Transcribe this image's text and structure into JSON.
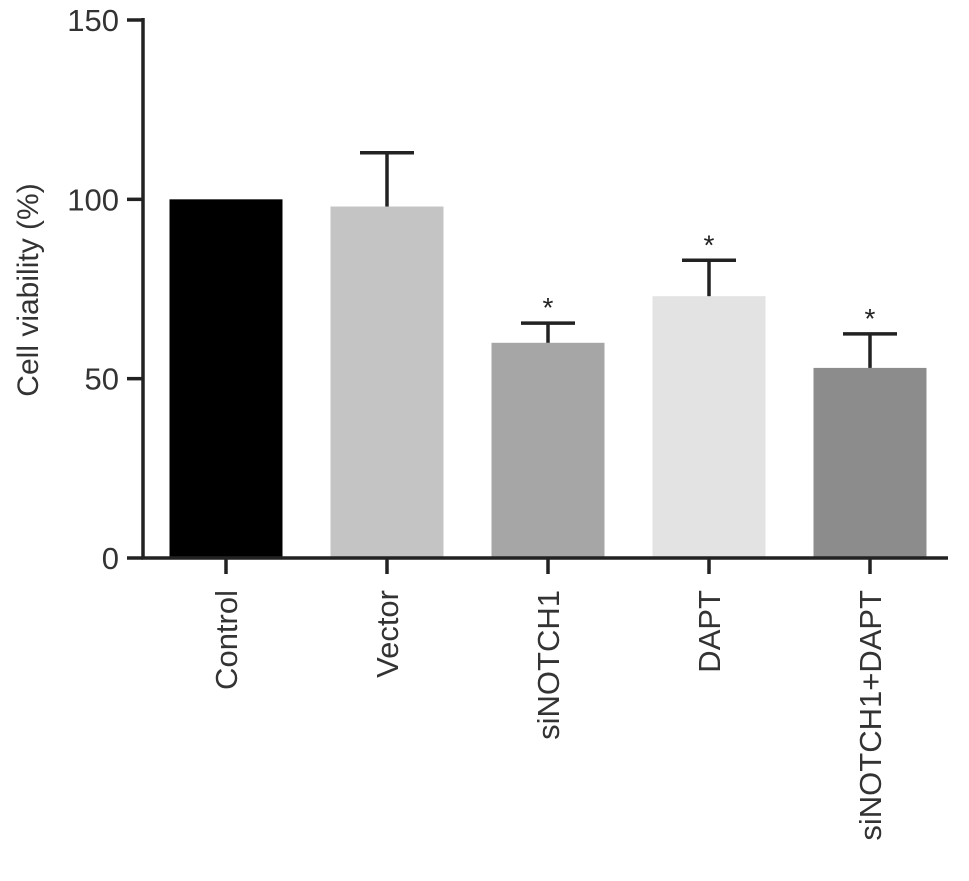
{
  "chart_data": {
    "type": "bar",
    "title": "",
    "xlabel": "",
    "ylabel": "Cell viability (%)",
    "ylim": [
      0,
      150
    ],
    "yticks": [
      0,
      50,
      100,
      150
    ],
    "grid": false,
    "legend": "none",
    "categories": [
      "Control",
      "Vector",
      "siNOTCH1",
      "DAPT",
      "siNOTCH1+DAPT"
    ],
    "values": [
      100,
      98,
      60,
      73,
      53
    ],
    "errors": [
      0,
      15,
      5.5,
      10,
      9.5
    ],
    "significance": [
      "",
      "",
      "*",
      "*",
      "*"
    ],
    "bar_colors": [
      "#000000",
      "#c4c4c4",
      "#a6a6a6",
      "#e3e3e3",
      "#8c8c8c"
    ]
  }
}
